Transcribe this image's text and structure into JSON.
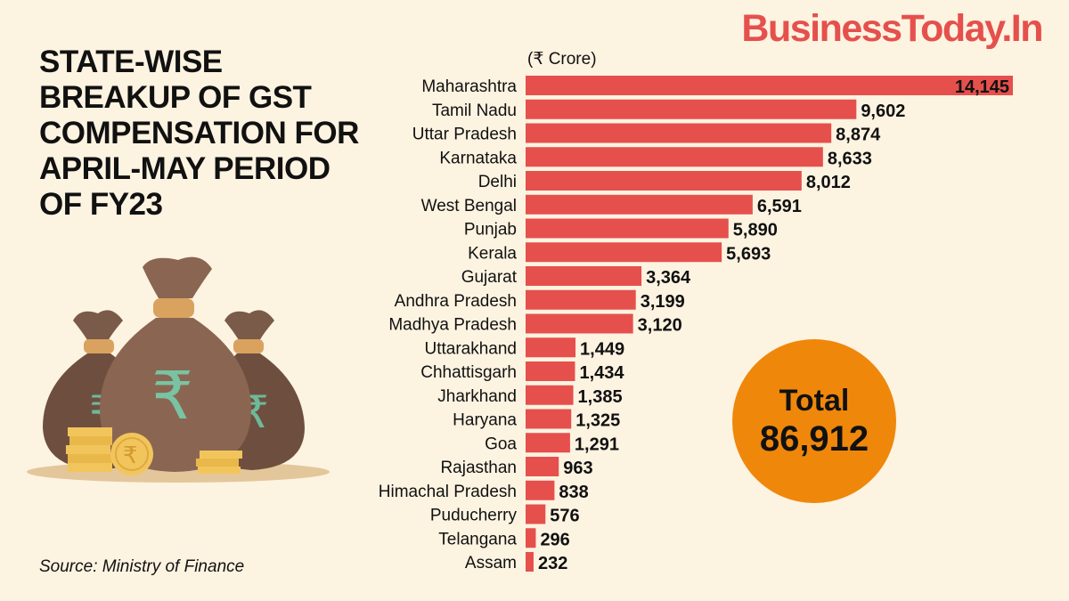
{
  "brand": "BusinessToday.In",
  "source": "Source: Ministry of Finance",
  "total": {
    "label": "Total",
    "value": "86,912"
  },
  "colors": {
    "background": "#fdf3e1",
    "bar": "#e5504d",
    "total_circle": "#ef870b",
    "logo": "#e5504d"
  },
  "chart_data": {
    "type": "bar",
    "orientation": "horizontal",
    "title": "STATE-WISE BREAKUP OF GST COMPENSATION FOR APRIL-MAY PERIOD OF FY23",
    "unit": "(₹ Crore)",
    "categories": [
      "Maharashtra",
      "Tamil Nadu",
      "Uttar Pradesh",
      "Karnataka",
      "Delhi",
      "West Bengal",
      "Punjab",
      "Kerala",
      "Gujarat",
      "Andhra Pradesh",
      "Madhya Pradesh",
      "Uttarakhand",
      "Chhattisgarh",
      "Jharkhand",
      "Haryana",
      "Goa",
      "Rajasthan",
      "Himachal Pradesh",
      "Puducherry",
      "Telangana",
      "Assam"
    ],
    "values": [
      14145,
      9602,
      8874,
      8633,
      8012,
      6591,
      5890,
      5693,
      3364,
      3199,
      3120,
      1449,
      1434,
      1385,
      1325,
      1291,
      963,
      838,
      576,
      296,
      232
    ],
    "value_labels": [
      "14,145",
      "9,602",
      "8,874",
      "8,633",
      "8,012",
      "6,591",
      "5,890",
      "5,693",
      "3,364",
      "3,199",
      "3,120",
      "1,449",
      "1,434",
      "1,385",
      "1,325",
      "1,291",
      "963",
      "838",
      "576",
      "296",
      "232"
    ],
    "grid": false,
    "legend": "none"
  }
}
